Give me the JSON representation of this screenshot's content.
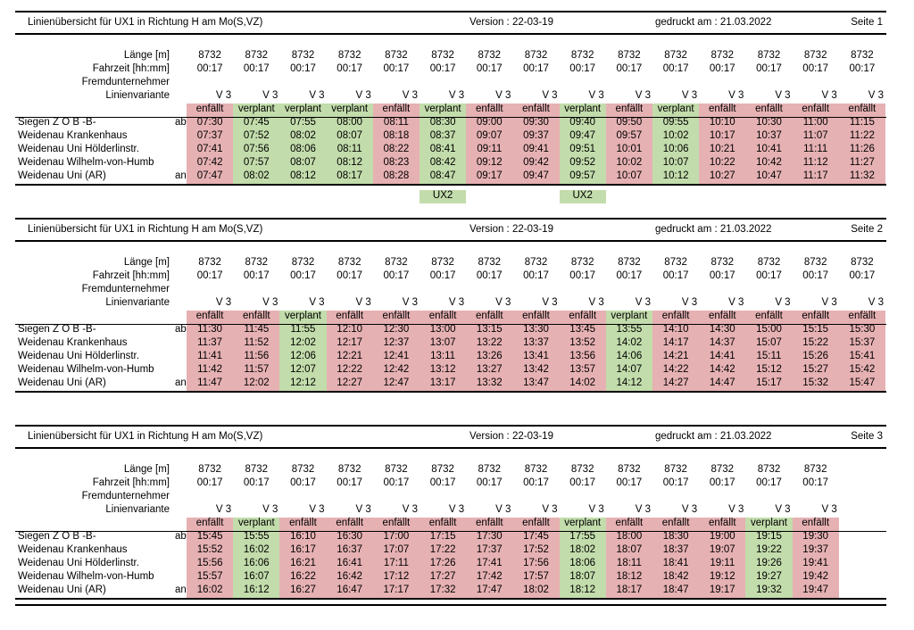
{
  "pages": [
    {
      "header": {
        "title": "Linienübersicht für UX1 in Richtung H am Mo(S,VZ)",
        "version": "Version : 22-03-19",
        "printed": "gedruckt am : 21.03.2022",
        "page": "Seite   1"
      },
      "labels": {
        "length": "Länge [m]",
        "duration": "Fahrzeit [hh:mm]",
        "contractor": "Fremdunternehmer",
        "variant": "Linienvariante"
      },
      "stops": [
        {
          "name": "Siegen Z O B -B-",
          "mark": "ab"
        },
        {
          "name": "Weidenau Krankenhaus",
          "mark": ""
        },
        {
          "name": "Weidenau Uni Hölderlinstr.",
          "mark": ""
        },
        {
          "name": "Weidenau Wilhelm-von-Humb",
          "mark": ""
        },
        {
          "name": "Weidenau Uni (AR)",
          "mark": "an"
        }
      ],
      "trips": [
        {
          "length": "8732",
          "duration": "00:17",
          "variant": "V 3",
          "status": "enfällt",
          "color": "#e6b1b3",
          "times": [
            "07:30",
            "07:37",
            "07:41",
            "07:42",
            "07:47"
          ],
          "note": ""
        },
        {
          "length": "8732",
          "duration": "00:17",
          "variant": "V 3",
          "status": "verplant",
          "color": "#c2dcab",
          "times": [
            "07:45",
            "07:52",
            "07:56",
            "07:57",
            "08:02"
          ],
          "note": ""
        },
        {
          "length": "8732",
          "duration": "00:17",
          "variant": "V 3",
          "status": "verplant",
          "color": "#c2dcab",
          "times": [
            "07:55",
            "08:02",
            "08:06",
            "08:07",
            "08:12"
          ],
          "note": ""
        },
        {
          "length": "8732",
          "duration": "00:17",
          "variant": "V 3",
          "status": "verplant",
          "color": "#c2dcab",
          "times": [
            "08:00",
            "08:07",
            "08:11",
            "08:12",
            "08:17"
          ],
          "note": ""
        },
        {
          "length": "8732",
          "duration": "00:17",
          "variant": "V 3",
          "status": "enfällt",
          "color": "#e6b1b3",
          "times": [
            "08:11",
            "08:18",
            "08:22",
            "08:23",
            "08:28"
          ],
          "note": ""
        },
        {
          "length": "8732",
          "duration": "00:17",
          "variant": "V 3",
          "status": "verplant",
          "color": "#c2dcab",
          "times": [
            "08:30",
            "08:37",
            "08:41",
            "08:42",
            "08:47"
          ],
          "note": "UX2"
        },
        {
          "length": "8732",
          "duration": "00:17",
          "variant": "V 3",
          "status": "enfällt",
          "color": "#e6b1b3",
          "times": [
            "09:00",
            "09:07",
            "09:11",
            "09:12",
            "09:17"
          ],
          "note": ""
        },
        {
          "length": "8732",
          "duration": "00:17",
          "variant": "V 3",
          "status": "enfällt",
          "color": "#e6b1b3",
          "times": [
            "09:30",
            "09:37",
            "09:41",
            "09:42",
            "09:47"
          ],
          "note": ""
        },
        {
          "length": "8732",
          "duration": "00:17",
          "variant": "V 3",
          "status": "verplant",
          "color": "#c2dcab",
          "times": [
            "09:40",
            "09:47",
            "09:51",
            "09:52",
            "09:57"
          ],
          "note": "UX2"
        },
        {
          "length": "8732",
          "duration": "00:17",
          "variant": "V 3",
          "status": "enfällt",
          "color": "#e6b1b3",
          "times": [
            "09:50",
            "09:57",
            "10:01",
            "10:02",
            "10:07"
          ],
          "note": ""
        },
        {
          "length": "8732",
          "duration": "00:17",
          "variant": "V 3",
          "status": "verplant",
          "color": "#c2dcab",
          "times": [
            "09:55",
            "10:02",
            "10:06",
            "10:07",
            "10:12"
          ],
          "note": ""
        },
        {
          "length": "8732",
          "duration": "00:17",
          "variant": "V 3",
          "status": "enfällt",
          "color": "#e6b1b3",
          "times": [
            "10:10",
            "10:17",
            "10:21",
            "10:22",
            "10:27"
          ],
          "note": ""
        },
        {
          "length": "8732",
          "duration": "00:17",
          "variant": "V 3",
          "status": "enfällt",
          "color": "#e6b1b3",
          "times": [
            "10:30",
            "10:37",
            "10:41",
            "10:42",
            "10:47"
          ],
          "note": ""
        },
        {
          "length": "8732",
          "duration": "00:17",
          "variant": "V 3",
          "status": "enfällt",
          "color": "#e6b1b3",
          "times": [
            "11:00",
            "11:07",
            "11:11",
            "11:12",
            "11:17"
          ],
          "note": ""
        },
        {
          "length": "8732",
          "duration": "00:17",
          "variant": "V 3",
          "status": "enfällt",
          "color": "#e6b1b3",
          "times": [
            "11:15",
            "11:22",
            "11:26",
            "11:27",
            "11:32"
          ],
          "note": ""
        }
      ]
    },
    {
      "header": {
        "title": "Linienübersicht für UX1 in Richtung H am Mo(S,VZ)",
        "version": "Version : 22-03-19",
        "printed": "gedruckt am : 21.03.2022",
        "page": "Seite   2"
      },
      "labels": {
        "length": "Länge [m]",
        "duration": "Fahrzeit [hh:mm]",
        "contractor": "Fremdunternehmer",
        "variant": "Linienvariante"
      },
      "stops": [
        {
          "name": "Siegen Z O B -B-",
          "mark": "ab"
        },
        {
          "name": "Weidenau Krankenhaus",
          "mark": ""
        },
        {
          "name": "Weidenau Uni Hölderlinstr.",
          "mark": ""
        },
        {
          "name": "Weidenau Wilhelm-von-Humb",
          "mark": ""
        },
        {
          "name": "Weidenau Uni (AR)",
          "mark": "an"
        }
      ],
      "trips": [
        {
          "length": "8732",
          "duration": "00:17",
          "variant": "V 3",
          "status": "enfällt",
          "color": "#e6b1b3",
          "times": [
            "11:30",
            "11:37",
            "11:41",
            "11:42",
            "11:47"
          ],
          "note": ""
        },
        {
          "length": "8732",
          "duration": "00:17",
          "variant": "V 3",
          "status": "enfällt",
          "color": "#e6b1b3",
          "times": [
            "11:45",
            "11:52",
            "11:56",
            "11:57",
            "12:02"
          ],
          "note": ""
        },
        {
          "length": "8732",
          "duration": "00:17",
          "variant": "V 3",
          "status": "verplant",
          "color": "#c2dcab",
          "times": [
            "11:55",
            "12:02",
            "12:06",
            "12:07",
            "12:12"
          ],
          "note": ""
        },
        {
          "length": "8732",
          "duration": "00:17",
          "variant": "V 3",
          "status": "enfällt",
          "color": "#e6b1b3",
          "times": [
            "12:10",
            "12:17",
            "12:21",
            "12:22",
            "12:27"
          ],
          "note": ""
        },
        {
          "length": "8732",
          "duration": "00:17",
          "variant": "V 3",
          "status": "enfällt",
          "color": "#e6b1b3",
          "times": [
            "12:30",
            "12:37",
            "12:41",
            "12:42",
            "12:47"
          ],
          "note": ""
        },
        {
          "length": "8732",
          "duration": "00:17",
          "variant": "V 3",
          "status": "enfällt",
          "color": "#e6b1b3",
          "times": [
            "13:00",
            "13:07",
            "13:11",
            "13:12",
            "13:17"
          ],
          "note": ""
        },
        {
          "length": "8732",
          "duration": "00:17",
          "variant": "V 3",
          "status": "enfällt",
          "color": "#e6b1b3",
          "times": [
            "13:15",
            "13:22",
            "13:26",
            "13:27",
            "13:32"
          ],
          "note": ""
        },
        {
          "length": "8732",
          "duration": "00:17",
          "variant": "V 3",
          "status": "enfällt",
          "color": "#e6b1b3",
          "times": [
            "13:30",
            "13:37",
            "13:41",
            "13:42",
            "13:47"
          ],
          "note": ""
        },
        {
          "length": "8732",
          "duration": "00:17",
          "variant": "V 3",
          "status": "enfällt",
          "color": "#e6b1b3",
          "times": [
            "13:45",
            "13:52",
            "13:56",
            "13:57",
            "14:02"
          ],
          "note": ""
        },
        {
          "length": "8732",
          "duration": "00:17",
          "variant": "V 3",
          "status": "verplant",
          "color": "#c2dcab",
          "times": [
            "13:55",
            "14:02",
            "14:06",
            "14:07",
            "14:12"
          ],
          "note": ""
        },
        {
          "length": "8732",
          "duration": "00:17",
          "variant": "V 3",
          "status": "enfällt",
          "color": "#e6b1b3",
          "times": [
            "14:10",
            "14:17",
            "14:21",
            "14:22",
            "14:27"
          ],
          "note": ""
        },
        {
          "length": "8732",
          "duration": "00:17",
          "variant": "V 3",
          "status": "enfällt",
          "color": "#e6b1b3",
          "times": [
            "14:30",
            "14:37",
            "14:41",
            "14:42",
            "14:47"
          ],
          "note": ""
        },
        {
          "length": "8732",
          "duration": "00:17",
          "variant": "V 3",
          "status": "enfällt",
          "color": "#e6b1b3",
          "times": [
            "15:00",
            "15:07",
            "15:11",
            "15:12",
            "15:17"
          ],
          "note": ""
        },
        {
          "length": "8732",
          "duration": "00:17",
          "variant": "V 3",
          "status": "enfällt",
          "color": "#e6b1b3",
          "times": [
            "15:15",
            "15:22",
            "15:26",
            "15:27",
            "15:32"
          ],
          "note": ""
        },
        {
          "length": "8732",
          "duration": "00:17",
          "variant": "V 3",
          "status": "enfällt",
          "color": "#e6b1b3",
          "times": [
            "15:30",
            "15:37",
            "15:41",
            "15:42",
            "15:47"
          ],
          "note": ""
        }
      ]
    },
    {
      "header": {
        "title": "Linienübersicht für UX1 in Richtung H am Mo(S,VZ)",
        "version": "Version : 22-03-19",
        "printed": "gedruckt am : 21.03.2022",
        "page": "Seite   3"
      },
      "labels": {
        "length": "Länge [m]",
        "duration": "Fahrzeit [hh:mm]",
        "contractor": "Fremdunternehmer",
        "variant": "Linienvariante"
      },
      "stops": [
        {
          "name": "Siegen Z O B -B-",
          "mark": "ab"
        },
        {
          "name": "Weidenau Krankenhaus",
          "mark": ""
        },
        {
          "name": "Weidenau Uni Hölderlinstr.",
          "mark": ""
        },
        {
          "name": "Weidenau Wilhelm-von-Humb",
          "mark": ""
        },
        {
          "name": "Weidenau Uni (AR)",
          "mark": "an"
        }
      ],
      "trips": [
        {
          "length": "8732",
          "duration": "00:17",
          "variant": "V 3",
          "status": "enfällt",
          "color": "#e6b1b3",
          "times": [
            "15:45",
            "15:52",
            "15:56",
            "15:57",
            "16:02"
          ],
          "note": ""
        },
        {
          "length": "8732",
          "duration": "00:17",
          "variant": "V 3",
          "status": "verplant",
          "color": "#c2dcab",
          "times": [
            "15:55",
            "16:02",
            "16:06",
            "16:07",
            "16:12"
          ],
          "note": ""
        },
        {
          "length": "8732",
          "duration": "00:17",
          "variant": "V 3",
          "status": "enfällt",
          "color": "#e6b1b3",
          "times": [
            "16:10",
            "16:17",
            "16:21",
            "16:22",
            "16:27"
          ],
          "note": ""
        },
        {
          "length": "8732",
          "duration": "00:17",
          "variant": "V 3",
          "status": "enfällt",
          "color": "#e6b1b3",
          "times": [
            "16:30",
            "16:37",
            "16:41",
            "16:42",
            "16:47"
          ],
          "note": ""
        },
        {
          "length": "8732",
          "duration": "00:17",
          "variant": "V 3",
          "status": "enfällt",
          "color": "#e6b1b3",
          "times": [
            "17:00",
            "17:07",
            "17:11",
            "17:12",
            "17:17"
          ],
          "note": ""
        },
        {
          "length": "8732",
          "duration": "00:17",
          "variant": "V 3",
          "status": "enfällt",
          "color": "#e6b1b3",
          "times": [
            "17:15",
            "17:22",
            "17:26",
            "17:27",
            "17:32"
          ],
          "note": ""
        },
        {
          "length": "8732",
          "duration": "00:17",
          "variant": "V 3",
          "status": "enfällt",
          "color": "#e6b1b3",
          "times": [
            "17:30",
            "17:37",
            "17:41",
            "17:42",
            "17:47"
          ],
          "note": ""
        },
        {
          "length": "8732",
          "duration": "00:17",
          "variant": "V 3",
          "status": "enfällt",
          "color": "#e6b1b3",
          "times": [
            "17:45",
            "17:52",
            "17:56",
            "17:57",
            "18:02"
          ],
          "note": ""
        },
        {
          "length": "8732",
          "duration": "00:17",
          "variant": "V 3",
          "status": "verplant",
          "color": "#c2dcab",
          "times": [
            "17:55",
            "18:02",
            "18:06",
            "18:07",
            "18:12"
          ],
          "note": ""
        },
        {
          "length": "8732",
          "duration": "00:17",
          "variant": "V 3",
          "status": "enfällt",
          "color": "#e6b1b3",
          "times": [
            "18:00",
            "18:07",
            "18:11",
            "18:12",
            "18:17"
          ],
          "note": ""
        },
        {
          "length": "8732",
          "duration": "00:17",
          "variant": "V 3",
          "status": "enfällt",
          "color": "#e6b1b3",
          "times": [
            "18:30",
            "18:37",
            "18:41",
            "18:42",
            "18:47"
          ],
          "note": ""
        },
        {
          "length": "8732",
          "duration": "00:17",
          "variant": "V 3",
          "status": "enfällt",
          "color": "#e6b1b3",
          "times": [
            "19:00",
            "19:07",
            "19:11",
            "19:12",
            "19:17"
          ],
          "note": ""
        },
        {
          "length": "8732",
          "duration": "00:17",
          "variant": "V 3",
          "status": "verplant",
          "color": "#c2dcab",
          "times": [
            "19:15",
            "19:22",
            "19:26",
            "19:27",
            "19:32"
          ],
          "note": ""
        },
        {
          "length": "8732",
          "duration": "00:17",
          "variant": "V 3",
          "status": "enfällt",
          "color": "#e6b1b3",
          "times": [
            "19:30",
            "19:37",
            "19:41",
            "19:42",
            "19:47"
          ],
          "note": ""
        }
      ]
    }
  ]
}
